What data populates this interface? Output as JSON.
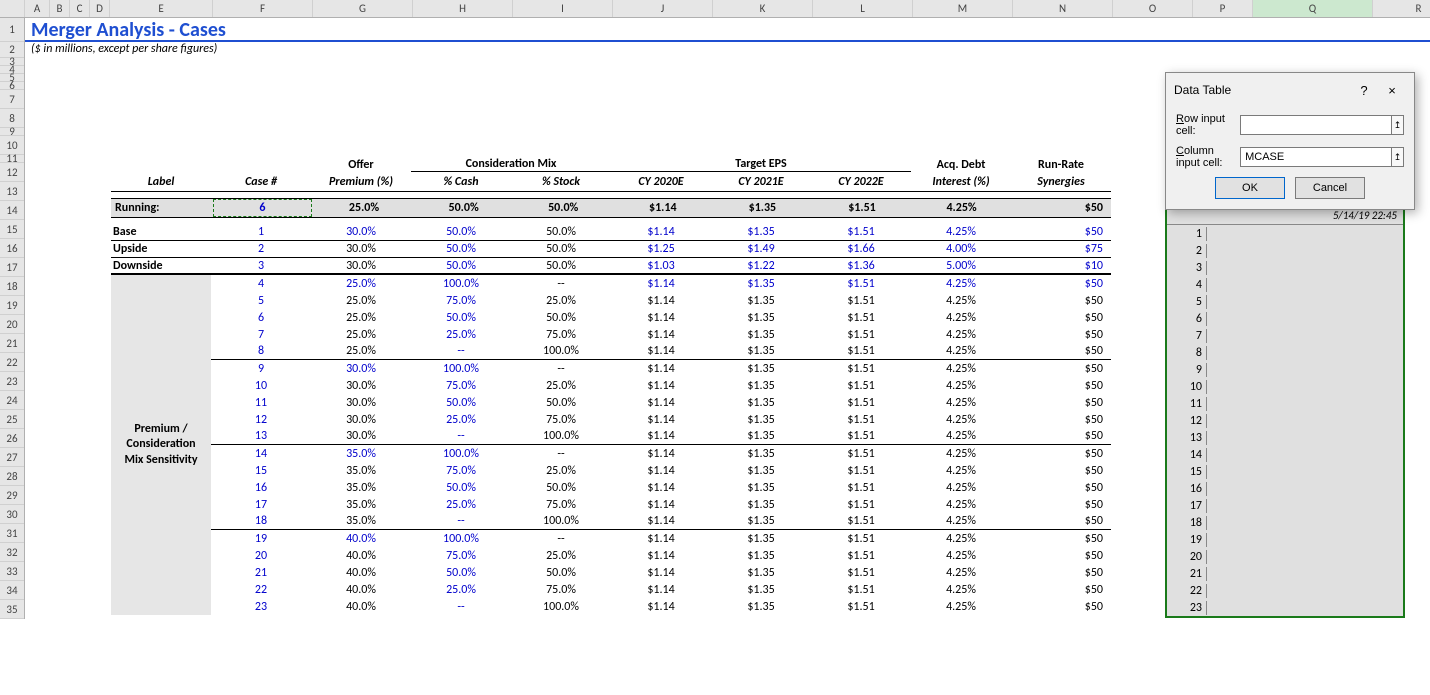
{
  "columns": {
    "headers": [
      "A",
      "B",
      "C",
      "D",
      "E",
      "F",
      "G",
      "H",
      "I",
      "J",
      "K",
      "L",
      "M",
      "N",
      "O",
      "P",
      "Q",
      "R"
    ],
    "widths": [
      25,
      20,
      20,
      20,
      103,
      100,
      100,
      100,
      100,
      100,
      100,
      100,
      100,
      100,
      80,
      60,
      120,
      92
    ],
    "selected_index": 16
  },
  "rows": {
    "count": 35,
    "heights": {
      "1": 24,
      "2": 16,
      "default": 17,
      "small": [
        3,
        4,
        5,
        6,
        9,
        11
      ]
    }
  },
  "title": "Merger Analysis - Cases",
  "subtitle": "($ in millions, except per share figures)",
  "table": {
    "hdr1": {
      "offer": "Offer",
      "mix": "Consideration Mix",
      "eps": "Target EPS",
      "debt": "Acq. Debt",
      "runrate": "Run-Rate"
    },
    "hdr2": {
      "label": "Label",
      "case": "Case #",
      "premium": "Premium (%)",
      "cash": "% Cash",
      "stock": "% Stock",
      "cy20": "CY 2020E",
      "cy21": "CY 2021E",
      "cy22": "CY 2022E",
      "interest": "Interest (%)",
      "syn": "Synergies"
    },
    "running": {
      "label": "Running:",
      "case": "6",
      "premium": "25.0%",
      "cash": "50.0%",
      "stock": "50.0%",
      "cy20": "$1.14",
      "cy21": "$1.35",
      "cy22": "$1.51",
      "interest": "4.25%",
      "syn": "$50"
    },
    "section1": [
      {
        "label": "Base",
        "case": "1",
        "premium": "30.0%",
        "cash": "50.0%",
        "stock": "50.0%",
        "cy20": "$1.14",
        "cy21": "$1.35",
        "cy22": "$1.51",
        "interest": "4.25%",
        "syn": "$50",
        "blue_cols": [
          "case",
          "premium",
          "cash",
          "cy20",
          "cy21",
          "cy22",
          "interest",
          "syn"
        ]
      },
      {
        "label": "Upside",
        "case": "2",
        "premium": "30.0%",
        "cash": "50.0%",
        "stock": "50.0%",
        "cy20": "$1.25",
        "cy21": "$1.49",
        "cy22": "$1.66",
        "interest": "4.00%",
        "syn": "$75",
        "blue_cols": [
          "case",
          "cash",
          "cy20",
          "cy21",
          "cy22",
          "interest",
          "syn"
        ]
      },
      {
        "label": "Downside",
        "case": "3",
        "premium": "30.0%",
        "cash": "50.0%",
        "stock": "50.0%",
        "cy20": "$1.03",
        "cy21": "$1.22",
        "cy22": "$1.36",
        "interest": "5.00%",
        "syn": "$10",
        "blue_cols": [
          "case",
          "cash",
          "cy20",
          "cy21",
          "cy22",
          "interest",
          "syn"
        ]
      }
    ],
    "section2_label": "Premium / Consideration Mix Sensitivity",
    "section2_groups": [
      [
        {
          "case": "4",
          "premium": "25.0%",
          "cash": "100.0%",
          "stock": "--",
          "cy20": "$1.14",
          "cy21": "$1.35",
          "cy22": "$1.51",
          "interest": "4.25%",
          "syn": "$50",
          "blue_cols": [
            "case",
            "premium",
            "cash",
            "cy20",
            "cy21",
            "cy22",
            "interest",
            "syn"
          ]
        },
        {
          "case": "5",
          "premium": "25.0%",
          "cash": "75.0%",
          "stock": "25.0%",
          "cy20": "$1.14",
          "cy21": "$1.35",
          "cy22": "$1.51",
          "interest": "4.25%",
          "syn": "$50",
          "blue_cols": [
            "case",
            "cash"
          ]
        },
        {
          "case": "6",
          "premium": "25.0%",
          "cash": "50.0%",
          "stock": "50.0%",
          "cy20": "$1.14",
          "cy21": "$1.35",
          "cy22": "$1.51",
          "interest": "4.25%",
          "syn": "$50",
          "blue_cols": [
            "case",
            "cash"
          ]
        },
        {
          "case": "7",
          "premium": "25.0%",
          "cash": "25.0%",
          "stock": "75.0%",
          "cy20": "$1.14",
          "cy21": "$1.35",
          "cy22": "$1.51",
          "interest": "4.25%",
          "syn": "$50",
          "blue_cols": [
            "case",
            "cash"
          ]
        },
        {
          "case": "8",
          "premium": "25.0%",
          "cash": "--",
          "stock": "100.0%",
          "cy20": "$1.14",
          "cy21": "$1.35",
          "cy22": "$1.51",
          "interest": "4.25%",
          "syn": "$50",
          "blue_cols": [
            "case",
            "cash"
          ]
        }
      ],
      [
        {
          "case": "9",
          "premium": "30.0%",
          "cash": "100.0%",
          "stock": "--",
          "cy20": "$1.14",
          "cy21": "$1.35",
          "cy22": "$1.51",
          "interest": "4.25%",
          "syn": "$50",
          "blue_cols": [
            "case",
            "premium",
            "cash"
          ]
        },
        {
          "case": "10",
          "premium": "30.0%",
          "cash": "75.0%",
          "stock": "25.0%",
          "cy20": "$1.14",
          "cy21": "$1.35",
          "cy22": "$1.51",
          "interest": "4.25%",
          "syn": "$50",
          "blue_cols": [
            "case",
            "cash"
          ]
        },
        {
          "case": "11",
          "premium": "30.0%",
          "cash": "50.0%",
          "stock": "50.0%",
          "cy20": "$1.14",
          "cy21": "$1.35",
          "cy22": "$1.51",
          "interest": "4.25%",
          "syn": "$50",
          "blue_cols": [
            "case",
            "cash"
          ]
        },
        {
          "case": "12",
          "premium": "30.0%",
          "cash": "25.0%",
          "stock": "75.0%",
          "cy20": "$1.14",
          "cy21": "$1.35",
          "cy22": "$1.51",
          "interest": "4.25%",
          "syn": "$50",
          "blue_cols": [
            "case",
            "cash"
          ]
        },
        {
          "case": "13",
          "premium": "30.0%",
          "cash": "--",
          "stock": "100.0%",
          "cy20": "$1.14",
          "cy21": "$1.35",
          "cy22": "$1.51",
          "interest": "4.25%",
          "syn": "$50",
          "blue_cols": [
            "case",
            "cash"
          ]
        }
      ],
      [
        {
          "case": "14",
          "premium": "35.0%",
          "cash": "100.0%",
          "stock": "--",
          "cy20": "$1.14",
          "cy21": "$1.35",
          "cy22": "$1.51",
          "interest": "4.25%",
          "syn": "$50",
          "blue_cols": [
            "case",
            "premium",
            "cash"
          ]
        },
        {
          "case": "15",
          "premium": "35.0%",
          "cash": "75.0%",
          "stock": "25.0%",
          "cy20": "$1.14",
          "cy21": "$1.35",
          "cy22": "$1.51",
          "interest": "4.25%",
          "syn": "$50",
          "blue_cols": [
            "case",
            "cash"
          ]
        },
        {
          "case": "16",
          "premium": "35.0%",
          "cash": "50.0%",
          "stock": "50.0%",
          "cy20": "$1.14",
          "cy21": "$1.35",
          "cy22": "$1.51",
          "interest": "4.25%",
          "syn": "$50",
          "blue_cols": [
            "case",
            "cash"
          ]
        },
        {
          "case": "17",
          "premium": "35.0%",
          "cash": "25.0%",
          "stock": "75.0%",
          "cy20": "$1.14",
          "cy21": "$1.35",
          "cy22": "$1.51",
          "interest": "4.25%",
          "syn": "$50",
          "blue_cols": [
            "case",
            "cash"
          ]
        },
        {
          "case": "18",
          "premium": "35.0%",
          "cash": "--",
          "stock": "100.0%",
          "cy20": "$1.14",
          "cy21": "$1.35",
          "cy22": "$1.51",
          "interest": "4.25%",
          "syn": "$50",
          "blue_cols": [
            "case",
            "cash"
          ]
        }
      ],
      [
        {
          "case": "19",
          "premium": "40.0%",
          "cash": "100.0%",
          "stock": "--",
          "cy20": "$1.14",
          "cy21": "$1.35",
          "cy22": "$1.51",
          "interest": "4.25%",
          "syn": "$50",
          "blue_cols": [
            "case",
            "premium",
            "cash"
          ]
        },
        {
          "case": "20",
          "premium": "40.0%",
          "cash": "75.0%",
          "stock": "25.0%",
          "cy20": "$1.14",
          "cy21": "$1.35",
          "cy22": "$1.51",
          "interest": "4.25%",
          "syn": "$50",
          "blue_cols": [
            "case",
            "cash"
          ]
        },
        {
          "case": "21",
          "premium": "40.0%",
          "cash": "50.0%",
          "stock": "50.0%",
          "cy20": "$1.14",
          "cy21": "$1.35",
          "cy22": "$1.51",
          "interest": "4.25%",
          "syn": "$50",
          "blue_cols": [
            "case",
            "cash"
          ]
        },
        {
          "case": "22",
          "premium": "40.0%",
          "cash": "25.0%",
          "stock": "75.0%",
          "cy20": "$1.14",
          "cy21": "$1.35",
          "cy22": "$1.51",
          "interest": "4.25%",
          "syn": "$50",
          "blue_cols": [
            "case",
            "cash"
          ]
        },
        {
          "case": "23",
          "premium": "40.0%",
          "cash": "--",
          "stock": "100.0%",
          "cy20": "$1.14",
          "cy21": "$1.35",
          "cy22": "$1.51",
          "interest": "4.25%",
          "syn": "$50",
          "blue_cols": [
            "case",
            "cash"
          ]
        }
      ]
    ]
  },
  "side": {
    "header": "5/14/19 22:45",
    "rows": [
      "1",
      "2",
      "3",
      "4",
      "5",
      "6",
      "7",
      "8",
      "9",
      "10",
      "11",
      "12",
      "13",
      "14",
      "15",
      "16",
      "17",
      "18",
      "19",
      "20",
      "21",
      "22",
      "23"
    ]
  },
  "dialog": {
    "title": "Data Table",
    "help": "?",
    "close": "×",
    "row_label": "Row input cell:",
    "row_under": "R",
    "col_label": "Column input cell:",
    "col_under": "C",
    "row_value": "",
    "col_value": "MCASE",
    "ref_icon": "↥",
    "ok": "OK",
    "cancel": "Cancel"
  }
}
